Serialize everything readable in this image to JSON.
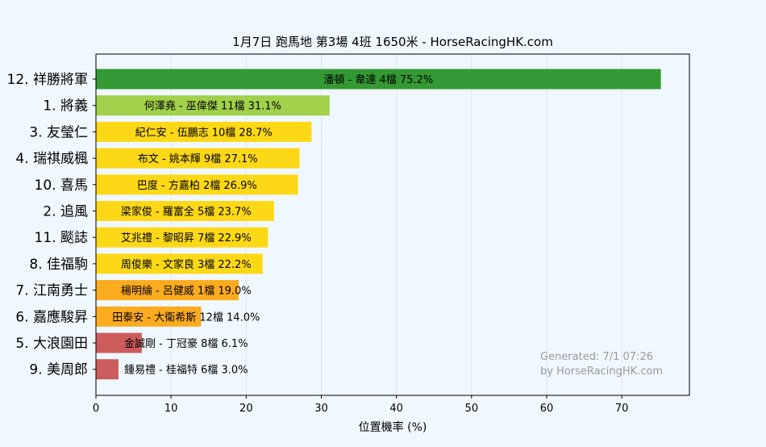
{
  "chart_data": {
    "type": "bar",
    "orientation": "horizontal",
    "title": "1月7日  跑馬地  第3場  4班  1650米 - HorseRacingHK.com",
    "xlabel": "位置機率 (%)",
    "ylabel": "",
    "xlim": [
      0,
      79
    ],
    "xticks": [
      0,
      10,
      20,
      30,
      40,
      50,
      60,
      70
    ],
    "grid": "vertical",
    "watermark": [
      "Generated: 7/1 07:26",
      "by HorseRacingHK.com"
    ],
    "categories": [
      "12. 祥勝將軍",
      "1. 將義",
      "3. 友瑩仁",
      "4. 瑞祺威楓",
      "10. 喜馬",
      "2. 追風",
      "11. 颷誌",
      "8. 佳福駒",
      "7. 江南勇士",
      "6. 嘉應駿昇",
      "5. 大浪園田",
      "9. 美周郎"
    ],
    "values": [
      75.2,
      31.1,
      28.7,
      27.1,
      26.9,
      23.7,
      22.9,
      22.2,
      19.0,
      14.0,
      6.1,
      3.0
    ],
    "bar_labels": [
      "潘頓 - 韋達 4檔  75.2%",
      "何澤堯 - 巫偉傑 11檔  31.1%",
      "紀仁安 - 伍鵬志 10檔  28.7%",
      "布文 - 姚本輝 9檔  27.1%",
      "巴度 - 方嘉柏 2檔  26.9%",
      "梁家俊 - 羅富全 5檔  23.7%",
      "艾兆禮 - 黎昭昇 7檔  22.9%",
      "周俊樂 - 文家良 3檔  22.2%",
      "楊明綸 - 呂健威 1檔  19.0%",
      "田泰安 - 大衛希斯 12檔  14.0%",
      "金誠剛 - 丁冠豪 8檔  6.1%",
      "鍾易禮 - 桂福特 6檔  3.0%"
    ],
    "colors": [
      "#339933",
      "#a1d14b",
      "#fdd816",
      "#fdd816",
      "#fdd816",
      "#fdd816",
      "#fdd816",
      "#fdd816",
      "#fbab1e",
      "#fbab1e",
      "#cd5c5c",
      "#cd5c5c"
    ]
  }
}
